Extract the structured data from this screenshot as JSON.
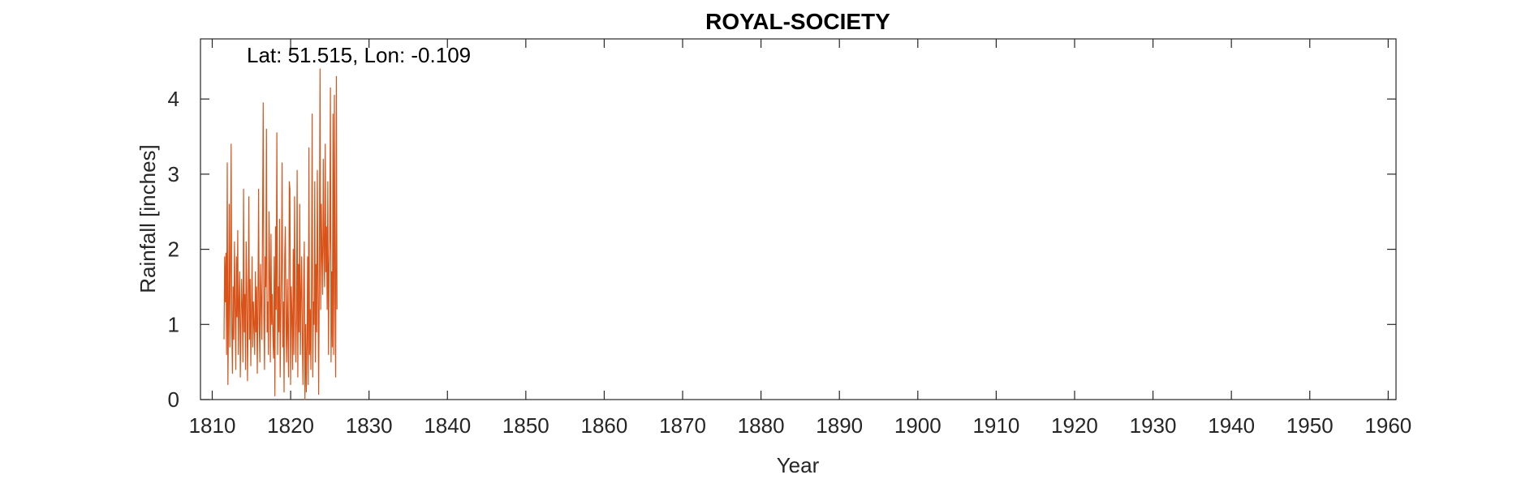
{
  "chart_data": {
    "type": "line",
    "title": "ROYAL-SOCIETY",
    "annotation": "Lat: 51.515, Lon: -0.109",
    "xlabel": "Year",
    "ylabel": "Rainfall [inches]",
    "xlim": [
      1808.5,
      1961
    ],
    "ylim": [
      0,
      4.8
    ],
    "xticks": [
      1810,
      1820,
      1830,
      1840,
      1850,
      1860,
      1870,
      1880,
      1890,
      1900,
      1910,
      1920,
      1930,
      1940,
      1950,
      1960
    ],
    "yticks": [
      0,
      1,
      2,
      3,
      4
    ],
    "grid": false,
    "series_color": "#D95319",
    "series": [
      {
        "start_year": 1811.5,
        "step": 0.0833,
        "values": [
          0.8,
          1.9,
          1.3,
          1.95,
          0.6,
          3.15,
          0.2,
          1.1,
          2.6,
          0.7,
          1.8,
          3.4,
          0.9,
          0.35,
          1.5,
          0.8,
          2.1,
          1.2,
          0.4,
          1.9,
          1.1,
          2.25,
          0.6,
          1.3,
          1.7,
          0.3,
          1.0,
          1.6,
          1.2,
          0.5,
          2.8,
          0.9,
          1.4,
          0.4,
          2.1,
          1.5,
          0.25,
          1.1,
          2.7,
          0.8,
          1.6,
          0.45,
          1.2,
          1.9,
          0.7,
          1.3,
          1.0,
          0.6,
          1.7,
          0.9,
          1.5,
          0.35,
          1.2,
          2.8,
          1.0,
          0.5,
          1.8,
          1.3,
          0.8,
          2.2,
          3.95,
          1.1,
          0.4,
          1.9,
          1.5,
          3.6,
          0.9,
          1.3,
          0.6,
          2.5,
          1.7,
          0.5,
          2.2,
          1.0,
          1.4,
          0.8,
          0.55,
          1.9,
          0.05,
          2.3,
          1.2,
          3.55,
          0.6,
          1.5,
          0.9,
          2.4,
          0.3,
          1.1,
          1.8,
          3.15,
          0.7,
          1.3,
          0.1,
          1.9,
          2.3,
          1.0,
          0.5,
          1.6,
          0.8,
          0.3,
          2.9,
          2.8,
          0.2,
          1.5,
          1.1,
          0.4,
          2.0,
          0.6,
          2.7,
          1.3,
          0.5,
          1.1,
          3.05,
          0.3,
          1.8,
          0.9,
          2.6,
          0.6,
          1.4,
          1.9,
          0.8,
          0.2,
          1.5,
          2.1,
          0.0,
          1.0,
          0.1,
          0.7,
          1.9,
          0.2,
          3.35,
          0.6,
          1.2,
          0.4,
          1.6,
          3.8,
          0.3,
          1.3,
          1.0,
          2.9,
          0.5,
          1.8,
          0.9,
          3.05,
          1.5,
          0.07,
          1.6,
          4.4,
          1.2,
          2.6,
          1.9,
          1.4,
          3.2,
          2.0,
          1.5,
          3.4,
          1.7,
          2.3,
          1.2,
          2.9,
          0.6,
          1.8,
          2.1,
          4.15,
          0.5,
          1.7,
          0.7,
          3.8,
          0.6,
          4.05,
          1.3,
          0.3,
          4.3,
          1.2
        ]
      }
    ]
  }
}
